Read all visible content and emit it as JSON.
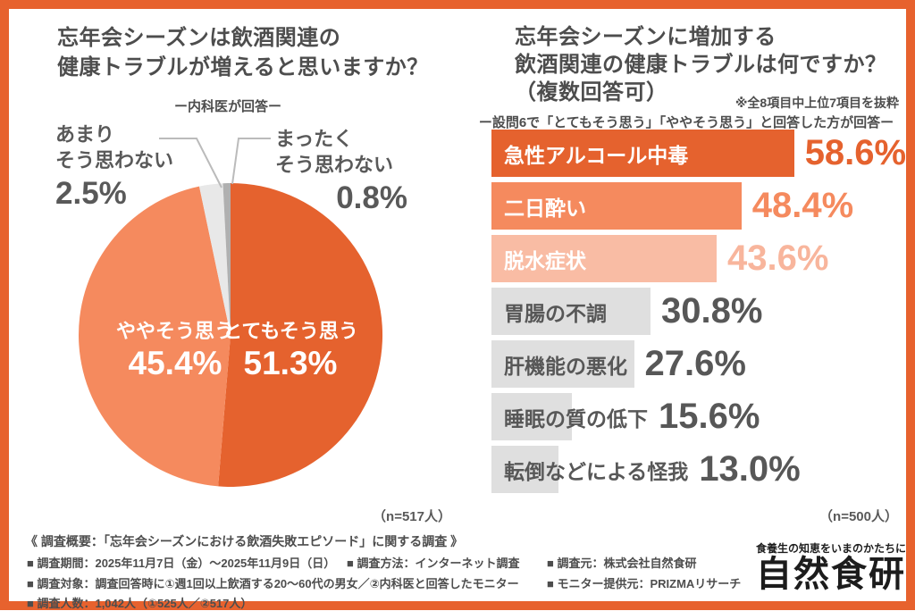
{
  "page": {
    "border_color": "#E7622E",
    "background": "#FFFFFF"
  },
  "left_chart": {
    "title_line1": "忘年会シーズンは飲酒関連の",
    "title_line2": "健康トラブルが増えると思いますか？",
    "subtitle": "ー内科医が回答ー",
    "n_label": "（n=517人）"
  },
  "right_chart": {
    "title_line1": "忘年会シーズンに増加する",
    "title_line2": "飲酒関連の健康トラブルは何ですか？",
    "title_line3": "（複数回答可）",
    "note": "※全8項目中上位7項目を抜粋",
    "subtitle": "ー設問6で「とてもそう思う」「ややそう思う」と回答した方が回答ー",
    "n_label": "（n=500人）"
  },
  "chart_data": [
    {
      "type": "pie",
      "title": "忘年会シーズンは飲酒関連の健康トラブルが増えると思いますか？",
      "subtitle": "ー内科医が回答ー",
      "respondents": 517,
      "start_angle_deg": 0,
      "direction": "clockwise",
      "slices": [
        {
          "label": "とてもそう思う",
          "value": 51.3,
          "value_display": "51.3%",
          "color": "#E5622E",
          "label_placement": "inside-right"
        },
        {
          "label": "ややそう思う",
          "value": 45.4,
          "value_display": "45.4%",
          "color": "#F58A5E",
          "label_placement": "inside-left"
        },
        {
          "label": "あまりそう思わない",
          "value": 2.5,
          "value_display": "2.5%",
          "color": "#E8E8E8",
          "label_placement": "outside-left"
        },
        {
          "label": "まったくそう思わない",
          "value": 0.8,
          "value_display": "0.8%",
          "color": "#B0B0B0",
          "label_placement": "outside-right"
        }
      ]
    },
    {
      "type": "bar",
      "orientation": "horizontal",
      "title": "忘年会シーズンに増加する飲酒関連の健康トラブルは何ですか？（複数回答可）",
      "note": "※全8項目中上位7項目を抜粋",
      "subtitle": "ー設問6で「とてもそう思う」「ややそう思う」と回答した方が回答ー",
      "respondents": 500,
      "unit": "%",
      "xlim": [
        0,
        60
      ],
      "categories": [
        "急性アルコール中毒",
        "二日酔い",
        "脱水症状",
        "胃腸の不調",
        "肝機能の悪化",
        "睡眠の質の低下",
        "転倒などによる怪我"
      ],
      "values": [
        58.6,
        48.4,
        43.6,
        30.8,
        27.6,
        15.6,
        13.0
      ],
      "value_labels": [
        "58.6%",
        "48.4%",
        "43.6%",
        "30.8%",
        "27.6%",
        "15.6%",
        "13.0%"
      ],
      "bar_colors": [
        "#E5622E",
        "#F58A5E",
        "#F9BCA4",
        "#DFDFDF",
        "#DFDFDF",
        "#DFDFDF",
        "#DFDFDF"
      ],
      "value_colors": [
        "#E5622E",
        "#F58A5E",
        "#F8B59C",
        "#575757",
        "#575757",
        "#575757",
        "#575757"
      ],
      "label_colors": [
        "#FFFFFF",
        "#FFFFFF",
        "#FFFFFF",
        "#575757",
        "#575757",
        "#575757",
        "#575757"
      ]
    }
  ],
  "footer": {
    "survey_title": "《 調査概要：「忘年会シーズンにおける飲酒失敗エピソード」に関する調査 》",
    "period": "■ 調査期間：2025年11月7日（金）～2025年11月9日（日）",
    "method": "■ 調査方法：インターネット調査",
    "target": "■ 調査対象：調査回答時に①週1回以上飲酒する20～60代の男女／②内科医と回答したモニター",
    "count": "■ 調査人数：1,042人（①525人／②517人）",
    "source": "■ 調査元：株式会社自然食研",
    "monitor": "■ モニター提供元：PRIZMAリサーチ"
  },
  "logo": {
    "tagline": "食養生の知恵をいまのかたちに",
    "name": "自然食研"
  }
}
